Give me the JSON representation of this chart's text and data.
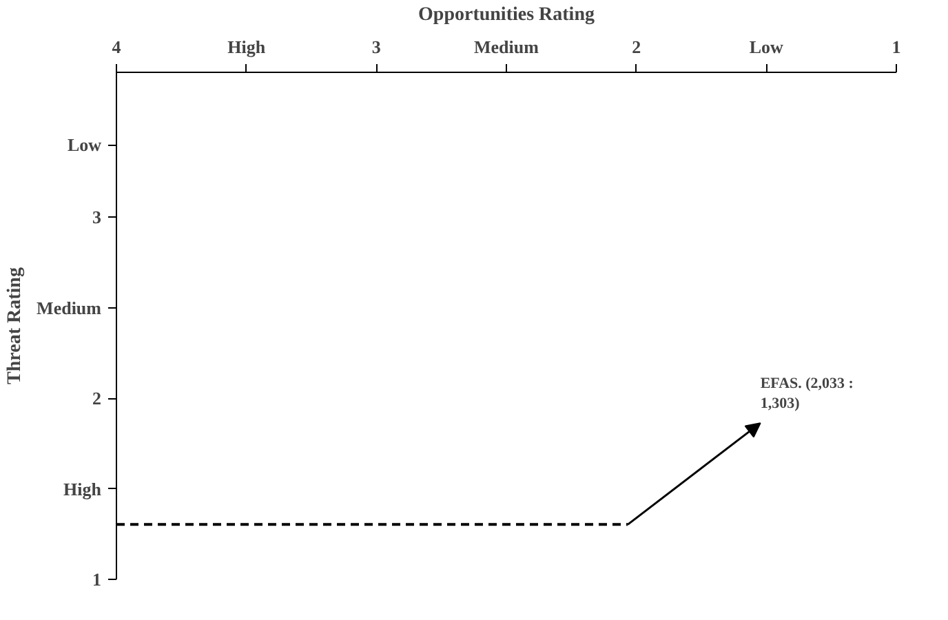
{
  "chart_data": {
    "type": "line",
    "xlabel": "Opportunities Rating",
    "ylabel": "Threat Rating",
    "xlim": [
      4,
      1
    ],
    "xticks": [
      4,
      {
        "value": 3.5,
        "label": "High"
      },
      3,
      {
        "value": 2.5,
        "label": "Medium"
      },
      2,
      {
        "value": 1.5,
        "label": "Low"
      },
      1
    ],
    "ylim": [
      1,
      3.8
    ],
    "yticks": [
      1,
      {
        "value": 1.5,
        "label": "High"
      },
      2,
      {
        "value": 2.5,
        "label": "Medium"
      },
      3,
      {
        "value": 3.4,
        "label": "Low"
      }
    ],
    "series": [
      {
        "x": [
          4,
          2.033
        ],
        "values": [
          1.303,
          1.303
        ],
        "color": "#000000",
        "line_style": "dashed"
      }
    ],
    "annotations": [
      {
        "text": "EFAS. (2,033 :\n1,303)",
        "x": 2.033,
        "y": 1.303
      }
    ],
    "grid": false
  }
}
